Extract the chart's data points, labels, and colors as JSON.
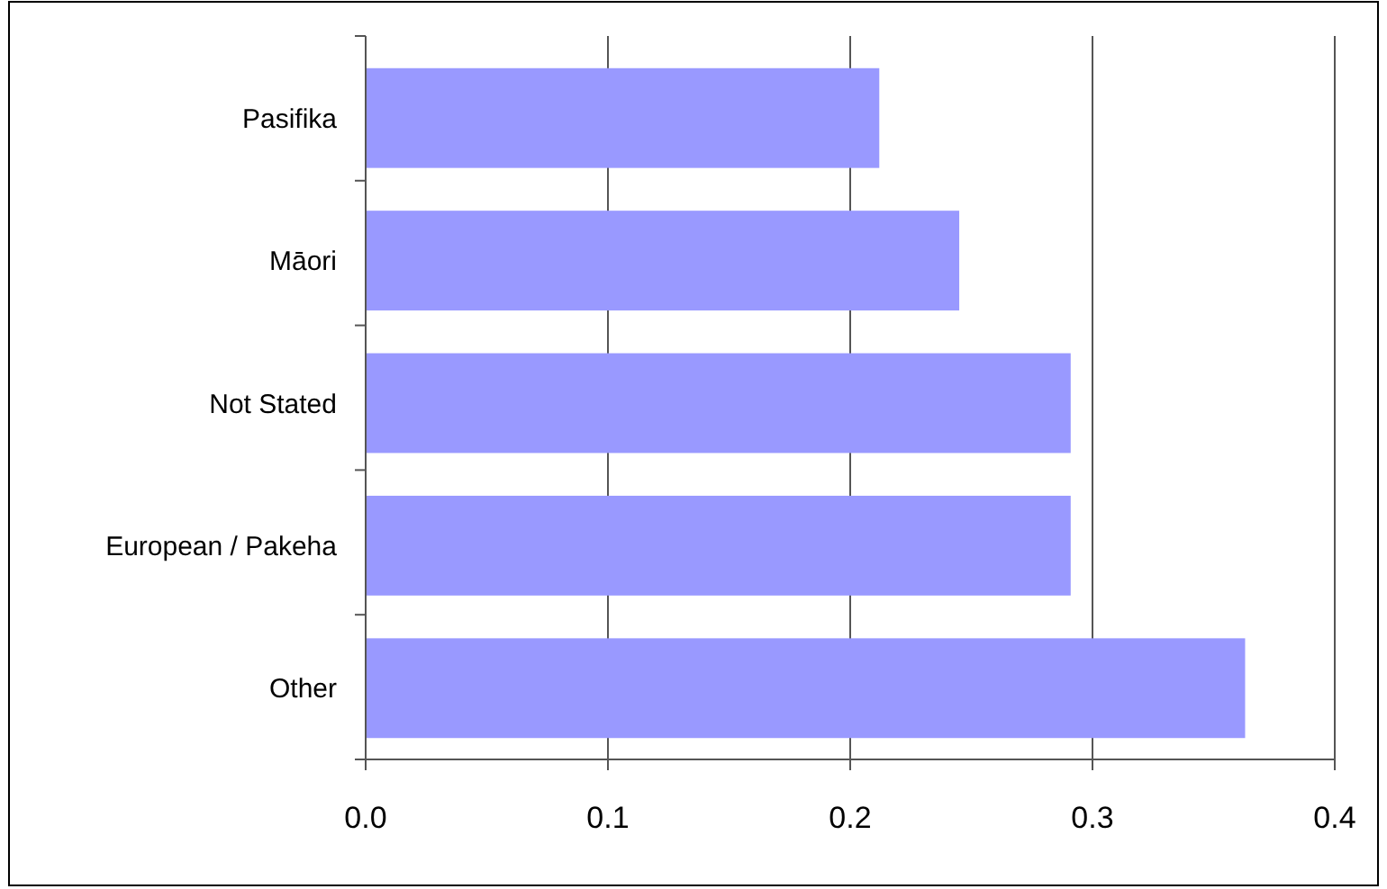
{
  "chart_data": {
    "type": "bar",
    "orientation": "horizontal",
    "categories": [
      "Pasifika",
      "Māori",
      "Not Stated",
      "European / Pakeha",
      "Other"
    ],
    "values": [
      0.212,
      0.245,
      0.291,
      0.291,
      0.363
    ],
    "color": "#9999ff",
    "xlim": [
      0,
      0.4
    ],
    "xticks": [
      {
        "value": 0,
        "label": "0.0"
      },
      0.1,
      0.2,
      0.3,
      0.4
    ],
    "grid": "x"
  }
}
